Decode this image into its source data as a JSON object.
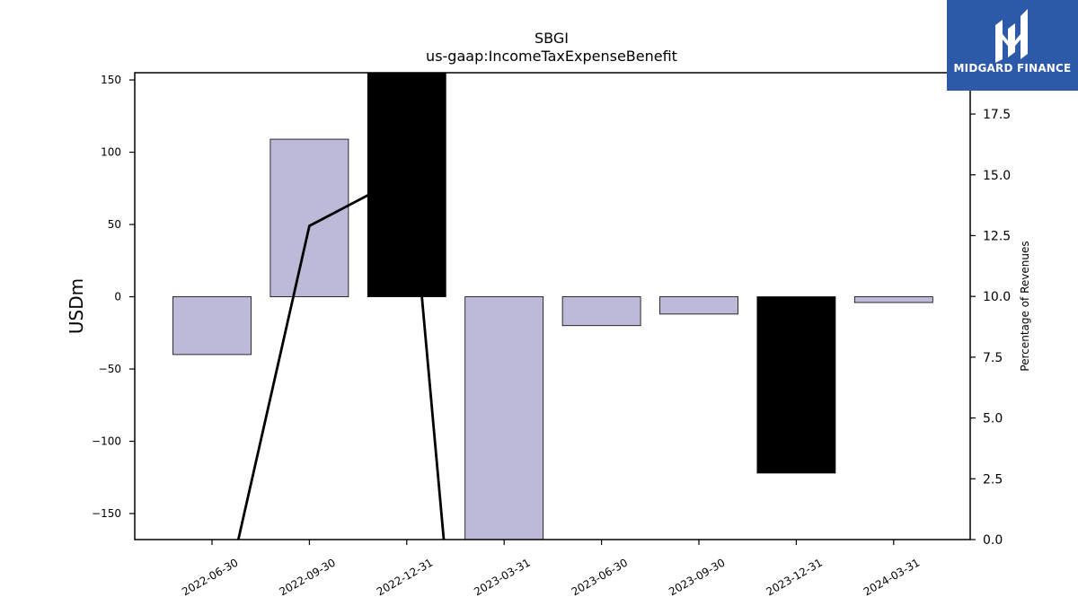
{
  "chart_data": {
    "type": "bar",
    "title": "SBGI",
    "subtitle": "us-gaap:IncomeTaxExpenseBenefit",
    "ylabel": "USDm",
    "y2label": "Percentage of Revenues",
    "categories": [
      "2022-06-30",
      "2022-09-30",
      "2022-12-31",
      "2023-03-31",
      "2023-06-30",
      "2023-09-30",
      "2023-12-31",
      "2024-03-31"
    ],
    "values": [
      -40,
      109,
      155,
      -168,
      -20,
      -12,
      -122,
      -4
    ],
    "bar_colors": [
      "#bdbad9",
      "#bdbad9",
      "#000000",
      "#bdbad9",
      "#bdbad9",
      "#bdbad9",
      "#000000",
      "#bdbad9"
    ],
    "line": {
      "x_index": [
        0.27,
        1,
        2,
        2.15,
        2.38
      ],
      "values": [
        0.0,
        12.9,
        15.0,
        10.2,
        0.0
      ]
    },
    "ylim": [
      -168,
      155
    ],
    "y2lim": [
      0,
      19.2
    ],
    "yticks": [
      -150,
      -100,
      -50,
      0,
      50,
      100,
      150
    ],
    "yticklabels": [
      "−150",
      "−100",
      "−50",
      "0",
      "50",
      "100",
      "150"
    ],
    "y2ticks": [
      0.0,
      2.5,
      5.0,
      7.5,
      10.0,
      12.5,
      15.0,
      17.5
    ],
    "y2ticklabels": [
      "0.0",
      "2.5",
      "5.0",
      "7.5",
      "10.0",
      "12.5",
      "15.0",
      "17.5"
    ],
    "grid": false,
    "colors": {
      "bar": "#bdbad9",
      "highlight": "#000000",
      "line": "#000000"
    }
  },
  "logo": {
    "text": "MIDGARD FINANCE",
    "background": "#2d5aa8"
  }
}
